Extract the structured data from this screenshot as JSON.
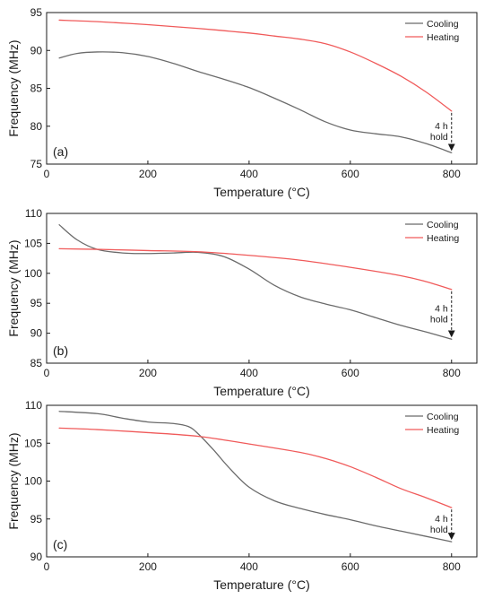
{
  "colors": {
    "cooling": "#6b6b6b",
    "heating": "#f05a5a",
    "axis": "#1a1a1a"
  },
  "chart_data": [
    {
      "type": "line",
      "panel_label": "(a)",
      "xlabel": "Temperature (°C)",
      "ylabel": "Frequency (MHz)",
      "xlim": [
        0,
        850
      ],
      "ylim": [
        75,
        95
      ],
      "xticks": [
        0,
        200,
        400,
        600,
        800
      ],
      "yticks": [
        75,
        80,
        85,
        90,
        95
      ],
      "legend_position": "top-right",
      "series": [
        {
          "name": "Cooling",
          "color": "#6b6b6b",
          "x": [
            25,
            60,
            100,
            150,
            200,
            250,
            300,
            350,
            400,
            450,
            500,
            550,
            600,
            650,
            700,
            750,
            800
          ],
          "y": [
            89.0,
            89.6,
            89.8,
            89.7,
            89.2,
            88.3,
            87.2,
            86.2,
            85.1,
            83.7,
            82.2,
            80.6,
            79.5,
            79.0,
            78.6,
            77.7,
            76.5
          ]
        },
        {
          "name": "Heating",
          "color": "#f05a5a",
          "x": [
            25,
            100,
            200,
            300,
            400,
            450,
            500,
            550,
            600,
            650,
            700,
            750,
            800
          ],
          "y": [
            94.0,
            93.8,
            93.4,
            92.9,
            92.3,
            91.9,
            91.5,
            90.9,
            89.8,
            88.3,
            86.6,
            84.5,
            82.0
          ]
        }
      ],
      "annotation": {
        "lines": [
          "4 h",
          "hold"
        ],
        "x": 800,
        "y_from": 82.0,
        "y_to": 76.5
      }
    },
    {
      "type": "line",
      "panel_label": "(b)",
      "xlabel": "Temperature (°C)",
      "ylabel": "Frequency (MHz)",
      "xlim": [
        0,
        850
      ],
      "ylim": [
        85,
        110
      ],
      "xticks": [
        0,
        200,
        400,
        600,
        800
      ],
      "yticks": [
        85,
        90,
        95,
        100,
        105,
        110
      ],
      "legend_position": "top-right",
      "series": [
        {
          "name": "Cooling",
          "color": "#6b6b6b",
          "x": [
            25,
            60,
            100,
            150,
            200,
            250,
            300,
            350,
            400,
            450,
            500,
            550,
            600,
            650,
            700,
            750,
            800
          ],
          "y": [
            108.1,
            105.6,
            104.0,
            103.4,
            103.3,
            103.4,
            103.5,
            102.8,
            100.7,
            98.0,
            96.1,
            94.9,
            93.9,
            92.6,
            91.3,
            90.2,
            89.0
          ]
        },
        {
          "name": "Heating",
          "color": "#f05a5a",
          "x": [
            25,
            100,
            200,
            300,
            400,
            500,
            600,
            700,
            750,
            800
          ],
          "y": [
            104.1,
            104.0,
            103.8,
            103.6,
            103.0,
            102.2,
            101.0,
            99.6,
            98.6,
            97.3
          ]
        }
      ],
      "annotation": {
        "lines": [
          "4 h",
          "hold"
        ],
        "x": 800,
        "y_from": 97.3,
        "y_to": 89.0
      }
    },
    {
      "type": "line",
      "panel_label": "(c)",
      "xlabel": "Temperature (°C)",
      "ylabel": "Frequency (MHz)",
      "xlim": [
        0,
        850
      ],
      "ylim": [
        90,
        110
      ],
      "xticks": [
        0,
        200,
        400,
        600,
        800
      ],
      "yticks": [
        90,
        95,
        100,
        105,
        110
      ],
      "legend_position": "top-right",
      "series": [
        {
          "name": "Cooling",
          "color": "#6b6b6b",
          "x": [
            25,
            100,
            150,
            200,
            250,
            280,
            300,
            330,
            360,
            400,
            450,
            500,
            550,
            600,
            650,
            700,
            750,
            800
          ],
          "y": [
            109.2,
            108.9,
            108.3,
            107.8,
            107.6,
            107.2,
            106.2,
            104.1,
            101.8,
            99.2,
            97.4,
            96.4,
            95.6,
            94.9,
            94.1,
            93.4,
            92.7,
            92.0
          ]
        },
        {
          "name": "Heating",
          "color": "#f05a5a",
          "x": [
            25,
            100,
            200,
            300,
            400,
            500,
            550,
            600,
            650,
            700,
            750,
            800
          ],
          "y": [
            107.0,
            106.8,
            106.4,
            105.9,
            104.9,
            103.8,
            103.0,
            101.9,
            100.5,
            99.0,
            97.8,
            96.5
          ]
        }
      ],
      "annotation": {
        "lines": [
          "4 h",
          "hold"
        ],
        "x": 800,
        "y_from": 96.5,
        "y_to": 92.0
      }
    }
  ]
}
